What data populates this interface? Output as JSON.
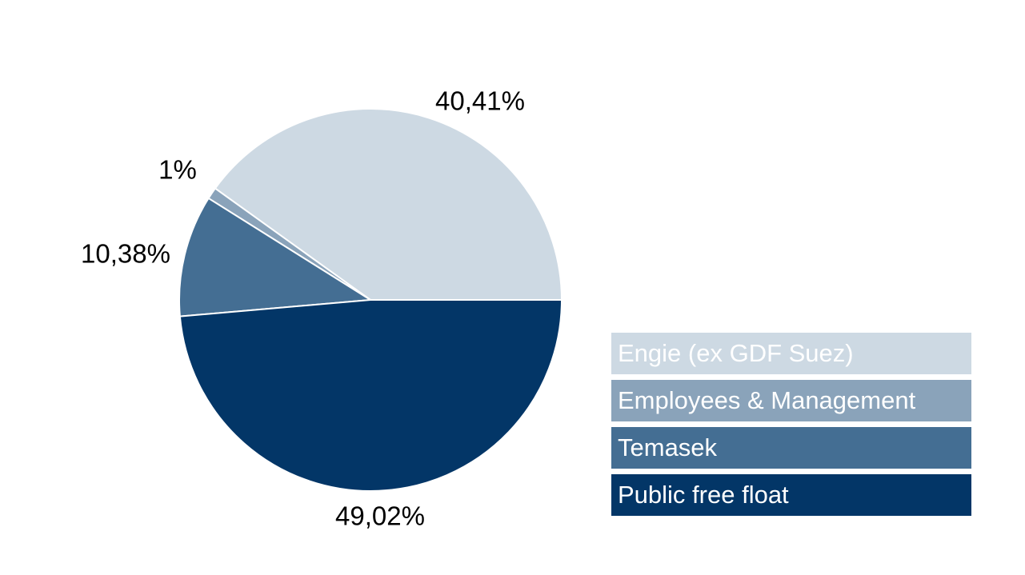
{
  "chart_data": {
    "type": "pie",
    "slices": [
      {
        "label": "Engie (ex GDF Suez)",
        "value": 40.41,
        "data_label": "40,41%",
        "color": "#cdd9e3"
      },
      {
        "label": "Employees & Management",
        "value": 1.0,
        "data_label": "1%",
        "color": "#8aa3ba"
      },
      {
        "label": "Temasek",
        "value": 10.38,
        "data_label": "10,38%",
        "color": "#446e93"
      },
      {
        "label": "Public free float",
        "value": 49.02,
        "data_label": "49,02%",
        "color": "#033667"
      }
    ],
    "legend_position": "bottom-right"
  }
}
